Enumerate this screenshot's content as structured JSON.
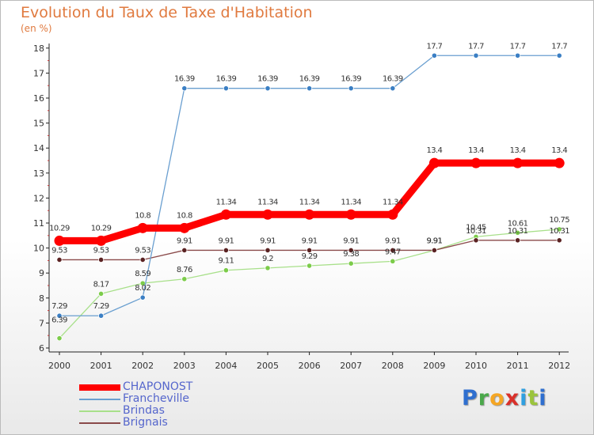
{
  "header": {
    "title": "Evolution du Taux de Taxe d'Habitation",
    "subtitle": "(en %)"
  },
  "brand": {
    "letters": [
      {
        "ch": "P",
        "color": "#2f6fcf"
      },
      {
        "ch": "r",
        "color": "#4aa84a"
      },
      {
        "ch": "o",
        "color": "#f5a623"
      },
      {
        "ch": "x",
        "color": "#d9302a"
      },
      {
        "ch": "i",
        "color": "#2f9fe0"
      },
      {
        "ch": "t",
        "color": "#9bc43c"
      },
      {
        "ch": "i",
        "color": "#2f6fcf"
      }
    ]
  },
  "chart_data": {
    "type": "line",
    "title": "Evolution du Taux de Taxe d'Habitation",
    "ylabel": "(en %)",
    "xlabel": "",
    "x": [
      "2000",
      "2001",
      "2002",
      "2003",
      "2004",
      "2005",
      "2006",
      "2007",
      "2008",
      "2009",
      "2010",
      "2011",
      "2012"
    ],
    "ylim": [
      6,
      18
    ],
    "yticks": [
      6,
      7,
      8,
      9,
      10,
      11,
      12,
      13,
      14,
      15,
      16,
      17,
      18
    ],
    "grid": false,
    "legend": "bottom-left",
    "series": [
      {
        "name": "CHAPONOST",
        "color": "#ff0000",
        "values": [
          10.29,
          10.29,
          10.8,
          10.8,
          11.34,
          11.34,
          11.34,
          11.34,
          11.34,
          13.4,
          13.4,
          13.4,
          13.4
        ],
        "labels": [
          "10.29",
          "10.29",
          "10.8",
          "10.8",
          "11.34",
          "11.34",
          "11.34",
          "11.34",
          "11.34",
          "13.4",
          "13.4",
          "13.4",
          "13.4"
        ]
      },
      {
        "name": "Francheville",
        "color": "#6a9fd0",
        "marker": "#3b7fc4",
        "values": [
          7.29,
          7.29,
          8.02,
          16.39,
          16.39,
          16.39,
          16.39,
          16.39,
          16.39,
          17.7,
          17.7,
          17.7,
          17.7
        ],
        "labels": [
          "7.29",
          "7.29",
          "8.02",
          "16.39",
          "16.39",
          "16.39",
          "16.39",
          "16.39",
          "16.39",
          "17.7",
          "17.7",
          "17.7",
          "17.7"
        ]
      },
      {
        "name": "Brindas",
        "color": "#a8e08a",
        "marker": "#7ccc4a",
        "values": [
          6.39,
          8.17,
          8.59,
          8.76,
          9.11,
          9.2,
          9.29,
          9.38,
          9.47,
          9.91,
          10.45,
          10.61,
          10.75
        ],
        "labels": [
          "6.39",
          "8.17",
          "8.59",
          "8.76",
          "9.11",
          "9.2",
          "9.29",
          "9.38",
          "9.47",
          "9.91",
          "10.45",
          "10.61",
          "10.75"
        ]
      },
      {
        "name": "Brignais",
        "color": "#8a4a4a",
        "marker": "#5a2222",
        "values": [
          9.53,
          9.53,
          9.53,
          9.91,
          9.91,
          9.91,
          9.91,
          9.91,
          9.91,
          9.91,
          10.31,
          10.31,
          10.31
        ],
        "labels": [
          "9.53",
          "9.53",
          "9.53",
          "9.91",
          "9.91",
          "9.91",
          "9.91",
          "9.91",
          "9.91",
          "9.91",
          "10.31",
          "10.31",
          "10.31"
        ]
      }
    ]
  }
}
